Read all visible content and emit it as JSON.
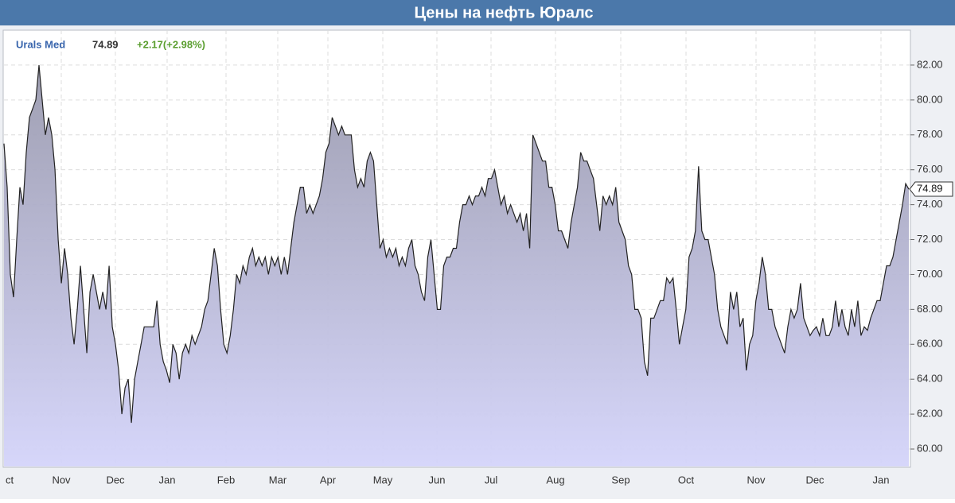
{
  "chart_data": {
    "type": "area",
    "title": "Цены на нефть Юралс",
    "legend": {
      "name": "Urals Med",
      "last": 74.89,
      "change": "+2.17(+2.98%)"
    },
    "month_labels": [
      "ct",
      "Nov",
      "Dec",
      "Jan",
      "Feb",
      "Mar",
      "Apr",
      "May",
      "Jun",
      "Jul",
      "Aug",
      "Sep",
      "Oct",
      "Nov",
      "Dec",
      "Jan"
    ],
    "color": "#b9b9dc",
    "line_color": "#222222",
    "ylim": [
      59,
      84
    ],
    "yticks": [
      {
        "value": 60,
        "label": "60.00"
      },
      {
        "value": 62,
        "label": "62.00"
      },
      {
        "value": 64,
        "label": "64.00"
      },
      {
        "value": 66,
        "label": "66.00"
      },
      {
        "value": 68,
        "label": "68.00"
      },
      {
        "value": 70,
        "label": "70.00"
      },
      {
        "value": 72,
        "label": "72.00"
      },
      {
        "value": 74,
        "label": "74.00"
      },
      {
        "value": 76,
        "label": "76.00"
      },
      {
        "value": 78,
        "label": "78.00"
      },
      {
        "value": 80,
        "label": "80.00"
      },
      {
        "value": 82,
        "label": "82.00"
      }
    ],
    "grid": true,
    "values": [
      77.5,
      75,
      70,
      68.7,
      72,
      75,
      74,
      77,
      79,
      79.5,
      80,
      82,
      80,
      78,
      79,
      78,
      76,
      72,
      69.5,
      71.5,
      70,
      67.5,
      66,
      68,
      70.5,
      68,
      65.5,
      69,
      70,
      69,
      68,
      69,
      68,
      70.5,
      67,
      66,
      64.5,
      62,
      63.5,
      64,
      61.5,
      64,
      65,
      66,
      67,
      67,
      67,
      67,
      68.5,
      66,
      65,
      64.5,
      63.8,
      66,
      65.5,
      64,
      65.5,
      66,
      65.5,
      66.5,
      66,
      66.5,
      67,
      68,
      68.5,
      70,
      71.5,
      70.5,
      68,
      66,
      65.5,
      66.5,
      68,
      70,
      69.5,
      70.5,
      70,
      71,
      71.5,
      70.5,
      71,
      70.5,
      71,
      70,
      71,
      70.5,
      71,
      70,
      71,
      70,
      71.5,
      73,
      74,
      75,
      75,
      73.5,
      74,
      73.5,
      74,
      74.5,
      75.5,
      77,
      77.5,
      79,
      78.5,
      78,
      78.5,
      78,
      78,
      78,
      76,
      75,
      75.5,
      75,
      76.5,
      77,
      76.5,
      74,
      71.5,
      72,
      71,
      71.5,
      71,
      71.5,
      70.5,
      71,
      70.5,
      71.5,
      72,
      70.5,
      70,
      69,
      68.5,
      71,
      72,
      70,
      68,
      68,
      70.5,
      71,
      71,
      71.5,
      71.5,
      73,
      74,
      74,
      74.5,
      74,
      74.5,
      74.5,
      75,
      74.5,
      75.5,
      75.5,
      76,
      75,
      74,
      74.5,
      73.5,
      74,
      73.5,
      73,
      73.5,
      72.5,
      73.5,
      71.5,
      78,
      77.5,
      77,
      76.5,
      76.5,
      75,
      75,
      74,
      72.5,
      72.5,
      72,
      71.5,
      73,
      74,
      75,
      77,
      76.5,
      76.5,
      76,
      75.5,
      74,
      72.5,
      74.5,
      74,
      74.5,
      74,
      75,
      73,
      72.5,
      72,
      70.5,
      70,
      68,
      68,
      67.5,
      65,
      64.2,
      67.5,
      67.5,
      68,
      68.5,
      68.5,
      69.8,
      69.5,
      69.8,
      68,
      66,
      67,
      68,
      71,
      71.5,
      72.5,
      76.2,
      72.5,
      72,
      72,
      71,
      70,
      68,
      67,
      66.5,
      66,
      69,
      68,
      69,
      67,
      67.5,
      64.5,
      66,
      66.5,
      68.5,
      69.5,
      71,
      70,
      68,
      68,
      67,
      66.5,
      66,
      65.5,
      67,
      68,
      67.5,
      68,
      69.5,
      67.5,
      67,
      66.5,
      66.8,
      67,
      66.5,
      67.5,
      66.5,
      66.5,
      67,
      68.5,
      67,
      68,
      67,
      66.5,
      68,
      67,
      68.5,
      66.5,
      67,
      66.8,
      67.5,
      68,
      68.5,
      68.5,
      69.5,
      70.5,
      70.5,
      71,
      72,
      73,
      74,
      75.2,
      74.89
    ]
  }
}
